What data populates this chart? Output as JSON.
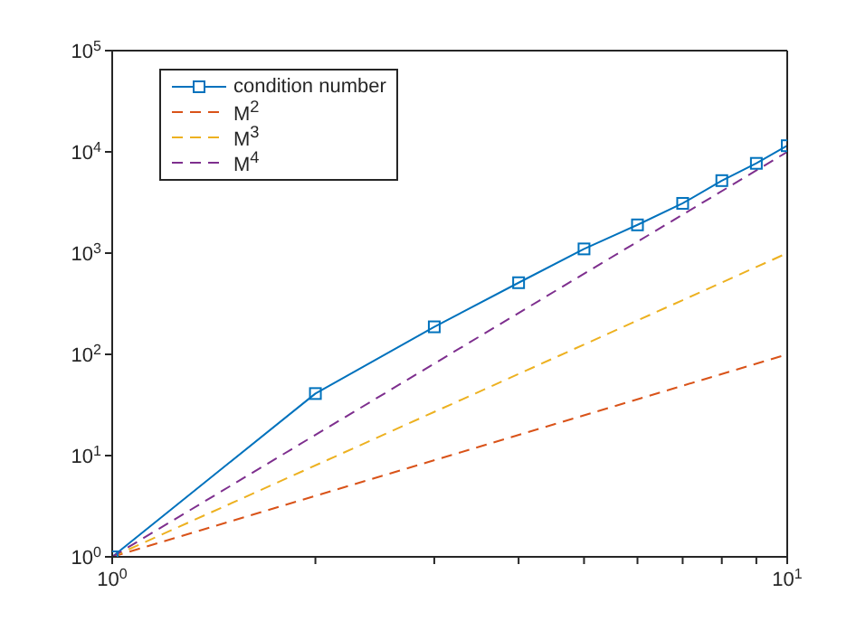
{
  "chart_data": {
    "type": "line",
    "log": "xy",
    "legend": "top left",
    "xlim": [
      1,
      10
    ],
    "ylim": [
      1,
      100000
    ],
    "xticks": [
      {
        "value": 1,
        "label": "10$^{0}$"
      },
      {
        "value": 2,
        "label": null
      },
      {
        "value": 3,
        "label": null
      },
      {
        "value": 4,
        "label": null
      },
      {
        "value": 5,
        "label": null
      },
      {
        "value": 6,
        "label": null
      },
      {
        "value": 7,
        "label": null
      },
      {
        "value": 8,
        "label": null
      },
      {
        "value": 9,
        "label": null
      },
      {
        "value": 10,
        "label": "10$^{1}$"
      }
    ],
    "yticks": [
      {
        "value": 1,
        "label": "10$^{0}$"
      },
      {
        "value": 10,
        "label": "10$^{1}$"
      },
      {
        "value": 100,
        "label": "10$^{2}$"
      },
      {
        "value": 1000,
        "label": "10$^{3}$"
      },
      {
        "value": 10000,
        "label": "10$^{4}$"
      },
      {
        "value": 100000,
        "label": "10$^{5}$"
      }
    ],
    "series": [
      {
        "name": "condition number",
        "color": "#0072bd",
        "marker": "square",
        "line_style": "solid",
        "x": [
          1,
          2,
          3,
          4,
          5,
          6,
          7,
          8,
          9,
          10
        ],
        "values": [
          1,
          41,
          187,
          510,
          1100,
          1900,
          3100,
          5200,
          7700,
          11500
        ]
      },
      {
        "name": "M$^{2}$",
        "color": "#d95319",
        "marker": "none",
        "line_style": "dashed",
        "x": [
          1,
          10
        ],
        "values": [
          1,
          100
        ]
      },
      {
        "name": "M$^{3}$",
        "color": "#edb120",
        "marker": "none",
        "line_style": "dashed",
        "x": [
          1,
          10
        ],
        "values": [
          1,
          1000
        ]
      },
      {
        "name": "M$^{4}$",
        "color": "#7e2f8e",
        "marker": "none",
        "line_style": "dashed",
        "x": [
          1,
          10
        ],
        "values": [
          1,
          10000
        ]
      }
    ]
  }
}
